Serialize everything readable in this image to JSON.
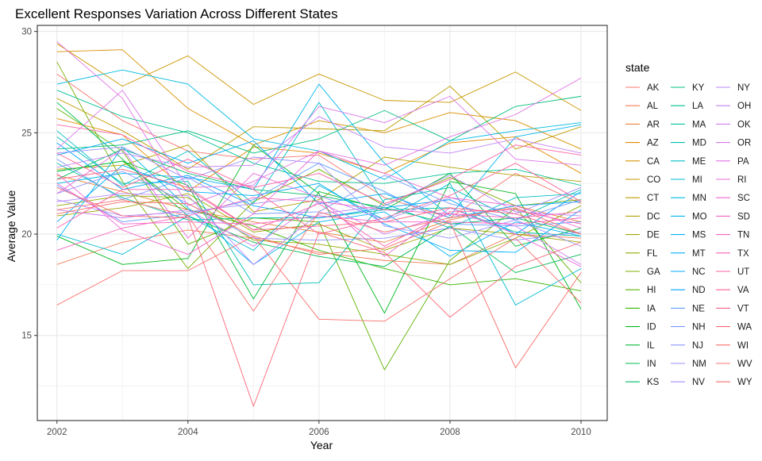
{
  "chart_data": {
    "type": "line",
    "title": "Excellent Responses Variation Across Different States",
    "xlabel": "Year",
    "ylabel": "Average Value",
    "legend_title": "state",
    "legend_placement": "right",
    "grid": true,
    "xlim": [
      2001.7,
      2010.4
    ],
    "ylim": [
      10.8,
      30.3
    ],
    "x_ticks": [
      2002,
      2004,
      2006,
      2008,
      2010
    ],
    "y_ticks": [
      15,
      20,
      25,
      30
    ],
    "x": [
      2002,
      2003,
      2004,
      2005,
      2006,
      2007,
      2008,
      2009,
      2010
    ],
    "series": [
      {
        "name": "AK",
        "color": "#F8766D",
        "values": [
          27.9,
          25.6,
          24.1,
          23.7,
          23.9,
          21.8,
          20.8,
          23.0,
          21.5
        ]
      },
      {
        "name": "AL",
        "color": "#F37B59",
        "values": [
          18.5,
          19.6,
          20.2,
          19.8,
          19.1,
          18.7,
          18.5,
          20.0,
          19.8
        ]
      },
      {
        "name": "AR",
        "color": "#EC8239",
        "values": [
          22.9,
          22.1,
          21.2,
          20.6,
          20.1,
          19.6,
          20.7,
          21.4,
          20.6
        ]
      },
      {
        "name": "AZ",
        "color": "#E38900",
        "values": [
          25.7,
          24.9,
          22.1,
          24.3,
          24.0,
          23.0,
          24.5,
          24.8,
          23.0
        ]
      },
      {
        "name": "CA",
        "color": "#D89000",
        "values": [
          29.0,
          29.1,
          26.2,
          24.4,
          25.6,
          25.0,
          26.0,
          25.6,
          24.2
        ]
      },
      {
        "name": "CO",
        "color": "#CC9600",
        "values": [
          29.4,
          27.3,
          28.8,
          26.4,
          27.9,
          26.6,
          26.5,
          28.0,
          26.1
        ]
      },
      {
        "name": "CT",
        "color": "#BF9C00",
        "values": [
          26.7,
          25.1,
          23.2,
          25.3,
          25.2,
          25.1,
          27.3,
          24.2,
          25.3
        ]
      },
      {
        "name": "DC",
        "color": "#B0A100",
        "values": [
          23.2,
          23.4,
          24.4,
          21.1,
          21.7,
          23.8,
          23.3,
          22.9,
          22.6
        ]
      },
      {
        "name": "DE",
        "color": "#A0A600",
        "values": [
          20.9,
          21.3,
          22.0,
          20.1,
          20.5,
          19.2,
          20.3,
          20.0,
          19.6
        ]
      },
      {
        "name": "FL",
        "color": "#8EAB00",
        "values": [
          21.4,
          21.9,
          21.8,
          19.7,
          19.5,
          19.0,
          18.5,
          19.8,
          21.4
        ]
      },
      {
        "name": "GA",
        "color": "#79AF00",
        "values": [
          28.5,
          22.6,
          18.3,
          21.6,
          23.2,
          21.4,
          22.8,
          21.4,
          21.7
        ]
      },
      {
        "name": "HI",
        "color": "#5EB300",
        "values": [
          26.2,
          24.1,
          19.5,
          20.8,
          20.6,
          13.3,
          18.7,
          21.3,
          17.6
        ]
      },
      {
        "name": "IA",
        "color": "#36B600",
        "values": [
          23.1,
          23.6,
          21.2,
          20.4,
          19.2,
          18.3,
          17.5,
          17.8,
          17.2
        ]
      },
      {
        "name": "ID",
        "color": "#00B81F",
        "values": [
          19.9,
          18.5,
          18.8,
          24.4,
          22.0,
          16.1,
          22.6,
          22.0,
          16.3
        ]
      },
      {
        "name": "IL",
        "color": "#00BA38",
        "values": [
          23.1,
          23.6,
          22.4,
          16.8,
          22.1,
          21.2,
          23.0,
          19.4,
          20.3
        ]
      },
      {
        "name": "IN",
        "color": "#00BC51",
        "values": [
          26.5,
          23.7,
          20.9,
          19.6,
          18.9,
          18.4,
          20.4,
          18.1,
          19.0
        ]
      },
      {
        "name": "KS",
        "color": "#00BE67",
        "values": [
          22.7,
          24.2,
          23.0,
          22.2,
          21.9,
          21.3,
          20.5,
          20.8,
          20.0
        ]
      },
      {
        "name": "KY",
        "color": "#00BF7D",
        "values": [
          24.2,
          24.4,
          25.1,
          24.0,
          24.7,
          26.1,
          24.6,
          26.3,
          26.8
        ]
      },
      {
        "name": "LA",
        "color": "#00C091",
        "values": [
          27.1,
          25.8,
          25.0,
          23.5,
          22.6,
          22.5,
          23.0,
          23.2,
          22.4
        ]
      },
      {
        "name": "MA",
        "color": "#00C1A3",
        "values": [
          23.5,
          21.8,
          20.7,
          20.8,
          20.8,
          21.2,
          21.3,
          20.1,
          19.9
        ]
      },
      {
        "name": "MD",
        "color": "#00C0B4",
        "values": [
          24.8,
          22.5,
          22.6,
          17.5,
          17.6,
          21.7,
          22.3,
          20.7,
          22.2
        ]
      },
      {
        "name": "ME",
        "color": "#00BFC4",
        "values": [
          25.1,
          22.4,
          24.1,
          21.5,
          26.5,
          21.5,
          20.3,
          21.8,
          22.0
        ]
      },
      {
        "name": "MI",
        "color": "#00BDD3",
        "values": [
          20.0,
          19.0,
          20.9,
          19.2,
          22.4,
          20.7,
          22.5,
          16.5,
          18.3
        ]
      },
      {
        "name": "MN",
        "color": "#00BBE1",
        "values": [
          27.4,
          28.1,
          27.4,
          24.7,
          24.1,
          22.7,
          24.6,
          25.1,
          25.5
        ]
      },
      {
        "name": "MO",
        "color": "#00B7ED",
        "values": [
          22.5,
          23.0,
          22.8,
          22.2,
          27.4,
          23.5,
          20.9,
          24.8,
          25.4
        ]
      },
      {
        "name": "MS",
        "color": "#00B3F7",
        "values": [
          19.7,
          24.3,
          21.3,
          18.5,
          20.6,
          21.1,
          18.9,
          20.6,
          19.9
        ]
      },
      {
        "name": "MT",
        "color": "#00AEFA",
        "values": [
          20.6,
          23.4,
          22.1,
          21.9,
          22.5,
          20.5,
          19.2,
          19.1,
          21.2
        ]
      },
      {
        "name": "NC",
        "color": "#00A9FF",
        "values": [
          23.9,
          24.7,
          23.5,
          24.6,
          21.5,
          22.0,
          20.8,
          21.4,
          21.6
        ]
      },
      {
        "name": "ND",
        "color": "#00A4FF",
        "values": [
          24.5,
          22.2,
          22.9,
          21.4,
          20.8,
          21.3,
          21.7,
          20.0,
          22.1
        ]
      },
      {
        "name": "NE",
        "color": "#619CFF",
        "values": [
          22.4,
          20.6,
          21.0,
          21.7,
          23.5,
          22.1,
          20.5,
          20.4,
          20.6
        ]
      },
      {
        "name": "NH",
        "color": "#7997FF",
        "values": [
          23.7,
          21.7,
          22.8,
          21.0,
          21.1,
          22.9,
          21.5,
          20.7,
          21.7
        ]
      },
      {
        "name": "NJ",
        "color": "#8B93FF",
        "values": [
          22.0,
          23.1,
          21.5,
          19.8,
          19.7,
          19.8,
          20.3,
          19.7,
          20.1
        ]
      },
      {
        "name": "NM",
        "color": "#9A8FFF",
        "values": [
          24.0,
          24.3,
          22.7,
          23.8,
          23.5,
          20.4,
          19.8,
          20.7,
          19.4
        ]
      },
      {
        "name": "NV",
        "color": "#A98BFC",
        "values": [
          21.7,
          20.9,
          21.1,
          21.5,
          21.9,
          20.7,
          21.8,
          21.0,
          22.3
        ]
      },
      {
        "name": "NY",
        "color": "#B686FA",
        "values": [
          21.6,
          22.0,
          21.9,
          18.5,
          21.0,
          21.4,
          22.9,
          21.1,
          20.9
        ]
      },
      {
        "name": "OH",
        "color": "#C381F5",
        "values": [
          23.3,
          24.0,
          23.3,
          23.4,
          25.8,
          24.3,
          24.0,
          24.7,
          24.0
        ]
      },
      {
        "name": "OK",
        "color": "#CF7CF0",
        "values": [
          21.2,
          20.8,
          21.2,
          19.4,
          21.6,
          20.0,
          21.0,
          20.4,
          18.5
        ]
      },
      {
        "name": "OR",
        "color": "#DA77EA",
        "values": [
          24.2,
          27.1,
          22.3,
          22.4,
          26.3,
          25.5,
          26.8,
          23.7,
          23.4
        ]
      },
      {
        "name": "PA",
        "color": "#E271E3",
        "values": [
          29.5,
          26.7,
          21.4,
          22.6,
          24.1,
          23.4,
          24.8,
          25.9,
          27.7
        ]
      },
      {
        "name": "RI",
        "color": "#E96CDB",
        "values": [
          22.0,
          24.2,
          19.8,
          23.0,
          21.8,
          18.9,
          21.3,
          20.0,
          18.4
        ]
      },
      {
        "name": "SC",
        "color": "#F066D2",
        "values": [
          23.0,
          20.2,
          19.0,
          21.0,
          24.1,
          23.0,
          21.8,
          21.4,
          20.3
        ]
      },
      {
        "name": "SD",
        "color": "#F563C8",
        "values": [
          22.5,
          20.5,
          20.6,
          20.5,
          20.9,
          20.6,
          20.6,
          20.5,
          20.8
        ]
      },
      {
        "name": "TN",
        "color": "#F962BD",
        "values": [
          19.2,
          20.3,
          20.9,
          21.8,
          21.6,
          21.2,
          21.0,
          20.8,
          21.1
        ]
      },
      {
        "name": "TX",
        "color": "#FB61B1",
        "values": [
          20.3,
          22.2,
          22.2,
          20.2,
          21.5,
          19.4,
          21.1,
          21.2,
          20.5
        ]
      },
      {
        "name": "UT",
        "color": "#FD61A4",
        "values": [
          25.4,
          24.9,
          23.1,
          22.3,
          23.0,
          21.5,
          22.7,
          24.4,
          23.9
        ]
      },
      {
        "name": "VA",
        "color": "#FE6296",
        "values": [
          24.0,
          22.3,
          23.7,
          22.2,
          20.0,
          20.8,
          21.9,
          23.5,
          21.6
        ]
      },
      {
        "name": "VT",
        "color": "#FC6487",
        "values": [
          22.7,
          23.2,
          22.3,
          20.2,
          20.4,
          20.6,
          21.3,
          21.0,
          20.0
        ]
      },
      {
        "name": "WA",
        "color": "#FA6777",
        "values": [
          22.3,
          20.9,
          20.8,
          11.5,
          20.1,
          19.1,
          15.9,
          18.4,
          19.6
        ]
      },
      {
        "name": "WI",
        "color": "#F76C67",
        "values": [
          21.0,
          21.6,
          21.5,
          19.9,
          19.0,
          19.3,
          20.6,
          13.4,
          18.1
        ]
      },
      {
        "name": "WV",
        "color": "#F87570",
        "values": [
          21.2,
          21.7,
          20.9,
          16.2,
          21.1,
          20.1,
          20.8,
          21.3,
          20.0
        ]
      },
      {
        "name": "WY",
        "color": "#F7706C",
        "values": [
          16.5,
          18.2,
          18.2,
          19.9,
          15.8,
          15.7,
          17.8,
          19.8,
          16.6
        ]
      }
    ]
  }
}
